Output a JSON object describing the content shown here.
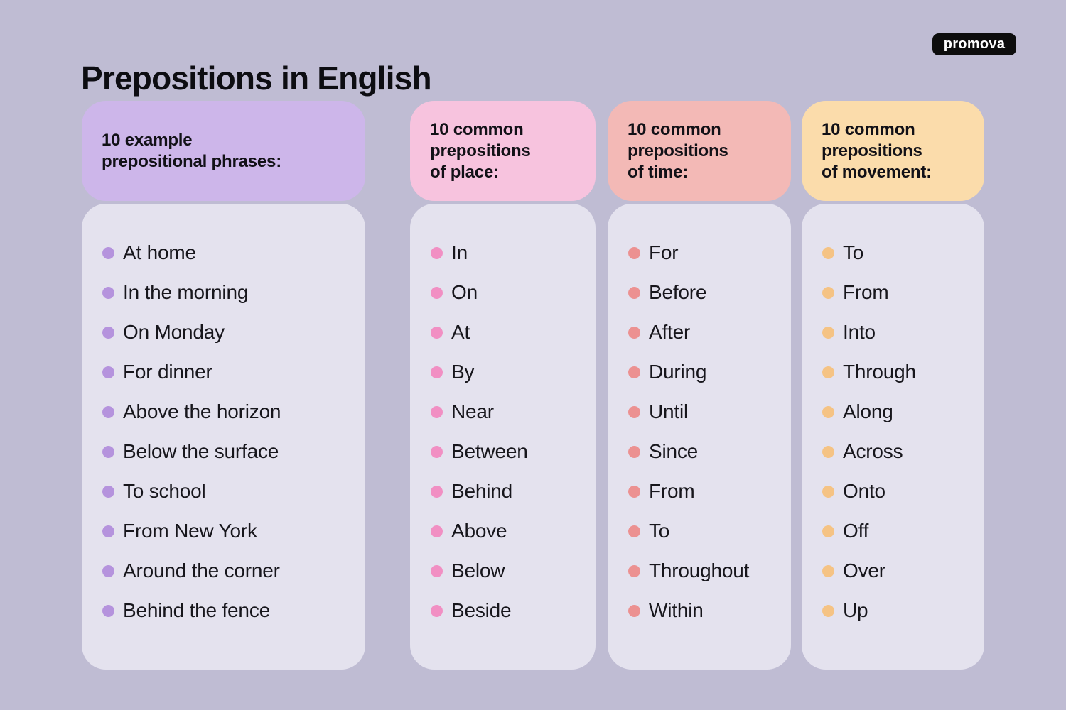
{
  "page": {
    "title": "Prepositions in English",
    "logo_text": "promova",
    "background_color": "#bfbcd3",
    "panel_color": "#e4e2ee",
    "title_color": "#0d0d12",
    "logo_bg_color": "#0d0d0d"
  },
  "columns": [
    {
      "id": "example-phrases",
      "header": "10 example\nprepositional phrases:",
      "header_bg": "#cdb6ea",
      "bullet_color": "#b593dd",
      "items": [
        "At home",
        "In the morning",
        "On Monday",
        "For dinner",
        "Above the horizon",
        "Below the surface",
        "To school",
        "From New York",
        "Around the corner",
        "Behind the fence"
      ]
    },
    {
      "id": "place",
      "header": "10 common\nprepositions\nof place:",
      "header_bg": "#f7c3de",
      "bullet_color": "#f18fc3",
      "items": [
        "In",
        "On",
        "At",
        "By",
        "Near",
        "Between",
        "Behind",
        "Above",
        "Below",
        "Beside"
      ]
    },
    {
      "id": "time",
      "header": "10 common\nprepositions\nof time:",
      "header_bg": "#f3b9b6",
      "bullet_color": "#ec9191",
      "items": [
        "For",
        "Before",
        "After",
        "During",
        "Until",
        "Since",
        "From",
        "To",
        "Throughout",
        "Within"
      ]
    },
    {
      "id": "movement",
      "header": "10 common\nprepositions\nof movement:",
      "header_bg": "#fbdcab",
      "bullet_color": "#f5c384",
      "items": [
        "To",
        "From",
        "Into",
        "Through",
        "Along",
        "Across",
        "Onto",
        "Off",
        "Over",
        "Up"
      ]
    }
  ]
}
